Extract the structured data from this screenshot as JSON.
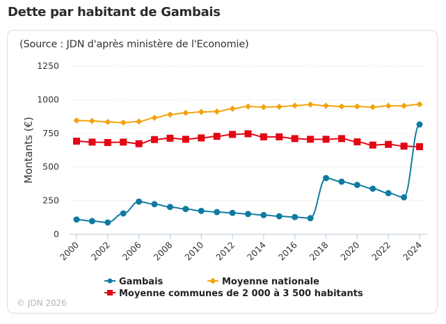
{
  "header": {
    "title": "Dette par habitant de Gambais"
  },
  "card": {
    "source": "(Source : JDN d'après ministère de l'Economie)",
    "copyright": "© JDN 2026"
  },
  "chart_data": {
    "type": "line",
    "title": "Dette par habitant de Gambais",
    "subtitle": "(Source : JDN d'après ministère de l'Economie)",
    "xlabel": "",
    "ylabel": "Montants (€)",
    "ylim": [
      0,
      1250
    ],
    "yticks": [
      "0",
      "250",
      "500",
      "750",
      "1000",
      "1250"
    ],
    "grid": true,
    "legend_position": "bottom",
    "x": [
      "2000",
      "2001",
      "2002",
      "2005",
      "2006",
      "2007",
      "2008",
      "2009",
      "2010",
      "2011",
      "2012",
      "2013",
      "2014",
      "2015",
      "2016",
      "2017",
      "2018",
      "2019",
      "2020",
      "2021",
      "2022",
      "2023",
      "2024"
    ],
    "xtick_labels": [
      "2000",
      "2002",
      "2006",
      "2008",
      "2010",
      "2012",
      "2014",
      "2016",
      "2018",
      "2020",
      "2022",
      "2024"
    ],
    "series": [
      {
        "name": "Gambais",
        "color": "#0f7ba0",
        "marker": "circle",
        "values": [
          110,
          98,
          88,
          155,
          243,
          224,
          203,
          188,
          174,
          165,
          159,
          151,
          143,
          134,
          128,
          120,
          418,
          391,
          367,
          339,
          306,
          275,
          816
        ]
      },
      {
        "name": "Moyenne nationale",
        "color": "#f4a20c",
        "marker": "diamond",
        "values": [
          846,
          842,
          835,
          830,
          838,
          866,
          890,
          902,
          909,
          912,
          933,
          950,
          945,
          948,
          956,
          964,
          955,
          950,
          950,
          945,
          954,
          955,
          966
        ]
      },
      {
        "name": "Moyenne communes de 2 000 à 3 500 habitants",
        "color": "#e30613",
        "marker": "square",
        "values": [
          692,
          685,
          682,
          685,
          673,
          704,
          714,
          706,
          716,
          728,
          742,
          747,
          724,
          724,
          711,
          706,
          706,
          711,
          687,
          663,
          668,
          655,
          651
        ]
      }
    ]
  }
}
